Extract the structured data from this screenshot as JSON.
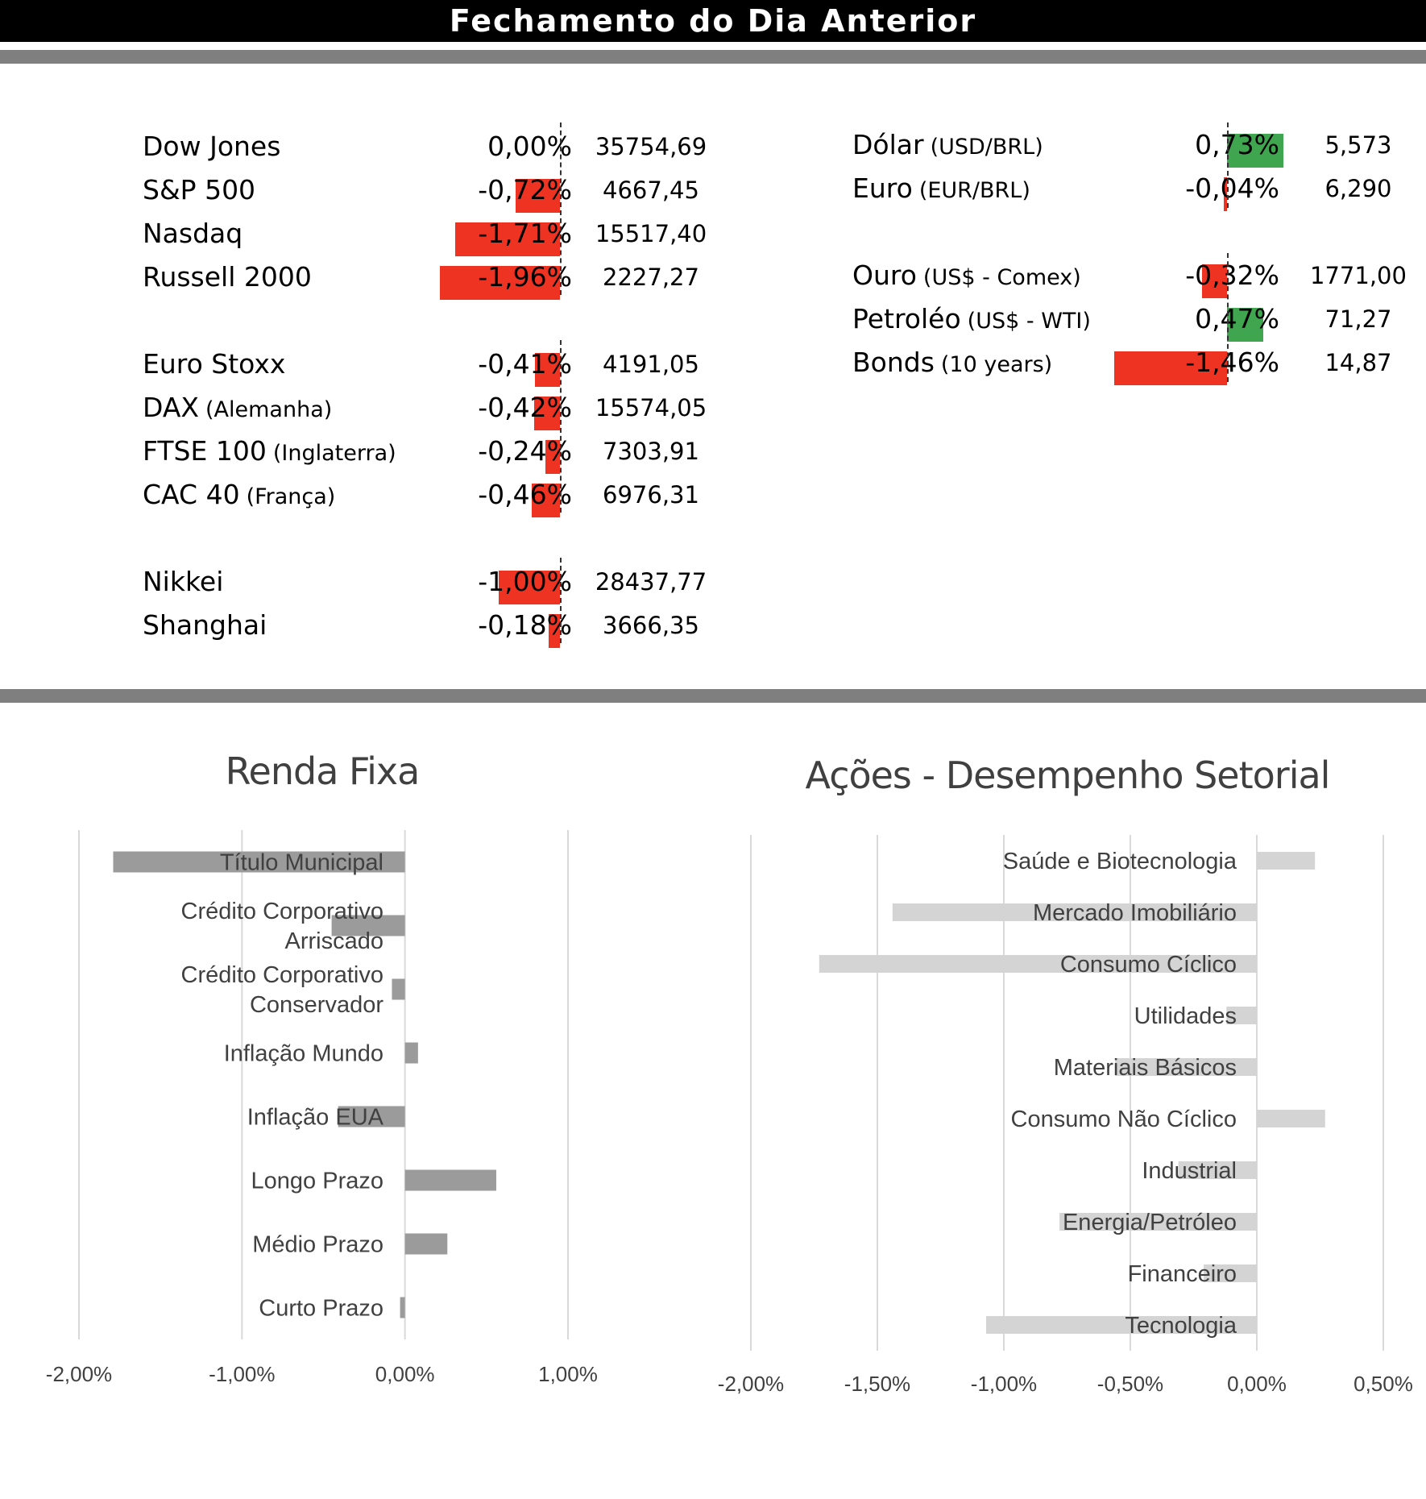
{
  "header": {
    "title": "Fechamento do Dia Anterior"
  },
  "colors": {
    "negative": "#ee3322",
    "positive": "#3fa54f",
    "renda_bar": "#9b9b9b",
    "acoes_bar": "#d4d4d4",
    "grid": "#d9d9d9",
    "label": "#404040"
  },
  "indices": [
    {
      "name": "Dow Jones",
      "sub": "",
      "pct": "0,00%",
      "pct_value": 0.0,
      "value": "35754,69"
    },
    {
      "name": "S&P 500",
      "sub": "",
      "pct": "-0,72%",
      "pct_value": -0.72,
      "value": "4667,45"
    },
    {
      "name": "Nasdaq",
      "sub": "",
      "pct": "-1,71%",
      "pct_value": -1.71,
      "value": "15517,40"
    },
    {
      "name": "Russell 2000",
      "sub": "",
      "pct": "-1,96%",
      "pct_value": -1.96,
      "value": "2227,27"
    },
    {
      "name": "Euro Stoxx",
      "sub": "",
      "pct": "-0,41%",
      "pct_value": -0.41,
      "value": "4191,05"
    },
    {
      "name": "DAX",
      "sub": "(Alemanha)",
      "pct": "-0,42%",
      "pct_value": -0.42,
      "value": "15574,05"
    },
    {
      "name": "FTSE 100",
      "sub": "(Inglaterra)",
      "pct": "-0,24%",
      "pct_value": -0.24,
      "value": "7303,91"
    },
    {
      "name": "CAC 40",
      "sub": "(França)",
      "pct": "-0,46%",
      "pct_value": -0.46,
      "value": "6976,31"
    },
    {
      "name": "Nikkei",
      "sub": "",
      "pct": "-1,00%",
      "pct_value": -1.0,
      "value": "28437,77"
    },
    {
      "name": "Shanghai",
      "sub": "",
      "pct": "-0,18%",
      "pct_value": -0.18,
      "value": "3666,35"
    }
  ],
  "markets": [
    {
      "name": "Dólar",
      "sub": "(USD/BRL)",
      "pct": "0,73%",
      "pct_value": 0.73,
      "value": "5,573"
    },
    {
      "name": "Euro",
      "sub": "(EUR/BRL)",
      "pct": "-0,04%",
      "pct_value": -0.04,
      "value": "6,290"
    },
    {
      "name": "Ouro",
      "sub": "(US$ - Comex)",
      "pct": "-0,32%",
      "pct_value": -0.32,
      "value": "1771,00"
    },
    {
      "name": "Petroléo",
      "sub": "(US$ - WTI)",
      "pct": "0,47%",
      "pct_value": 0.47,
      "value": "71,27"
    },
    {
      "name": "Bonds",
      "sub": "(10 years)",
      "pct": "-1,46%",
      "pct_value": -1.46,
      "value": "14,87"
    }
  ],
  "chart_data": [
    {
      "type": "bar",
      "orientation": "horizontal",
      "title": "Renda Fixa",
      "categories": [
        "Título Municipal",
        "Crédito Corporativo Arriscado",
        "Crédito Corporativo Conservador",
        "Inflação Mundo",
        "Inflação EUA",
        "Longo Prazo",
        "Médio Prazo",
        "Curto Prazo"
      ],
      "values": [
        -1.79,
        -0.45,
        -0.08,
        0.08,
        -0.41,
        0.56,
        0.26,
        -0.03
      ],
      "xlim": [
        -2.0,
        1.0
      ],
      "xticks": [
        "-2,00%",
        "-1,00%",
        "0,00%",
        "1,00%"
      ],
      "grid": "vertical"
    },
    {
      "type": "bar",
      "orientation": "horizontal",
      "title": "Ações - Desempenho Setorial",
      "categories": [
        "Saúde e Biotecnologia",
        "Mercado Imobiliário",
        "Consumo Cíclico",
        "Utilidades",
        "Materiais Básicos",
        "Consumo Não Cíclico",
        "Industrial",
        "Energia/Petróleo",
        "Financeiro",
        "Tecnologia"
      ],
      "values": [
        0.23,
        -1.44,
        -1.73,
        -0.12,
        -0.56,
        0.27,
        -0.31,
        -0.78,
        -0.21,
        -1.07
      ],
      "xlim": [
        -2.0,
        0.5
      ],
      "xticks": [
        "-2,00%",
        "-1,50%",
        "-1,00%",
        "-0,50%",
        "0,00%",
        "0,50%"
      ],
      "grid": "vertical"
    }
  ]
}
